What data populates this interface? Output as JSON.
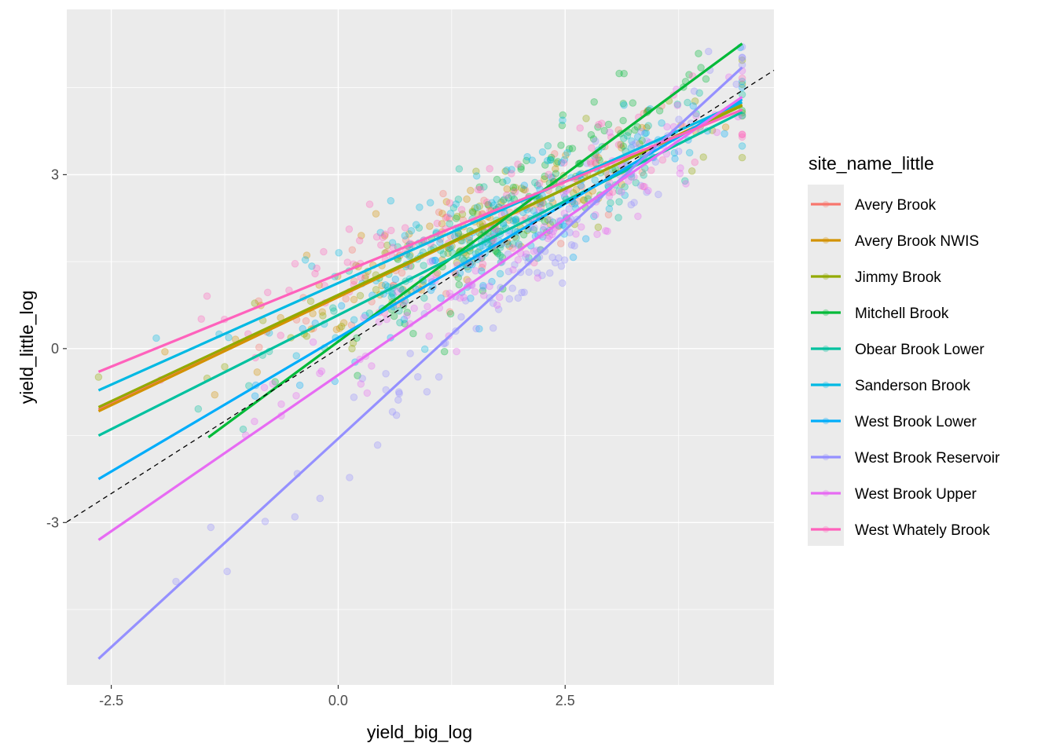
{
  "chart_data": {
    "type": "scatter",
    "title": "",
    "xlabel": "yield_big_log",
    "ylabel": "yield_little_log",
    "xlim": [
      -2.99,
      4.8
    ],
    "ylim": [
      -5.8,
      5.85
    ],
    "x_ticks": [
      -2.5,
      0.0,
      2.5
    ],
    "x_tick_labels": [
      "-2.5",
      "0.0",
      "2.5"
    ],
    "y_ticks": [
      -3,
      0,
      3
    ],
    "y_tick_labels": [
      "-3",
      "0",
      "3"
    ],
    "grid": true,
    "reference_line": {
      "type": "identity",
      "slope": 1,
      "intercept": 0,
      "style": "dashed",
      "color": "#000000"
    },
    "legend": {
      "title": "site_name_little",
      "position": "right"
    },
    "series": [
      {
        "name": "Avery Brook",
        "color": "#F8766D",
        "fit": {
          "x": [
            -2.64,
            4.45
          ],
          "y": [
            -1.05,
            4.2
          ]
        },
        "point_center": [
          1.6,
          2.3
        ],
        "point_spread": [
          1.2,
          0.9
        ],
        "n_points": 60
      },
      {
        "name": "Avery Brook NWIS",
        "color": "#D39200",
        "fit": {
          "x": [
            -2.64,
            4.45
          ],
          "y": [
            -1.08,
            4.21
          ]
        },
        "point_center": [
          1.3,
          2.0
        ],
        "point_spread": [
          1.4,
          1.0
        ],
        "n_points": 90
      },
      {
        "name": "Jimmy Brook",
        "color": "#93AA00",
        "fit": {
          "x": [
            -2.64,
            4.45
          ],
          "y": [
            -1.01,
            4.19
          ]
        },
        "point_center": [
          1.6,
          2.3
        ],
        "point_spread": [
          1.4,
          1.0
        ],
        "n_points": 90
      },
      {
        "name": "Mitchell Brook",
        "color": "#00BA38",
        "fit": {
          "x": [
            -1.43,
            4.45
          ],
          "y": [
            -1.53,
            5.26
          ]
        },
        "point_center": [
          2.2,
          3.0
        ],
        "point_spread": [
          1.0,
          0.9
        ],
        "n_points": 110
      },
      {
        "name": "Obear Brook Lower",
        "color": "#00C19F",
        "fit": {
          "x": [
            -2.64,
            4.45
          ],
          "y": [
            -1.5,
            4.08
          ]
        },
        "point_center": [
          1.9,
          2.5
        ],
        "point_spread": [
          1.3,
          1.0
        ],
        "n_points": 110
      },
      {
        "name": "Sanderson Brook",
        "color": "#00B9E3",
        "fit": {
          "x": [
            -2.64,
            4.45
          ],
          "y": [
            -0.72,
            4.25
          ]
        },
        "point_center": [
          1.7,
          2.5
        ],
        "point_spread": [
          1.3,
          0.9
        ],
        "n_points": 100
      },
      {
        "name": "West Brook Lower",
        "color": "#00ADFA",
        "fit": {
          "x": [
            -2.64,
            4.45
          ],
          "y": [
            -2.25,
            4.3
          ]
        },
        "point_center": [
          1.8,
          2.0
        ],
        "point_spread": [
          1.3,
          1.1
        ],
        "n_points": 100
      },
      {
        "name": "West Brook Reservoir",
        "color": "#9590FF",
        "fit": {
          "x": [
            -2.64,
            4.45
          ],
          "y": [
            -5.35,
            4.85
          ]
        },
        "point_center": [
          2.0,
          1.6
        ],
        "point_spread": [
          1.3,
          1.6
        ],
        "n_points": 110
      },
      {
        "name": "West Brook Upper",
        "color": "#E76BF3",
        "fit": {
          "x": [
            -2.64,
            4.45
          ],
          "y": [
            -3.3,
            4.34
          ]
        },
        "point_center": [
          1.9,
          1.6
        ],
        "point_spread": [
          1.3,
          1.3
        ],
        "n_points": 110
      },
      {
        "name": "West Whately Brook",
        "color": "#FF62BC",
        "fit": {
          "x": [
            -2.64,
            4.45
          ],
          "y": [
            -0.4,
            4.12
          ]
        },
        "point_center": [
          1.4,
          2.4
        ],
        "point_spread": [
          1.5,
          0.9
        ],
        "n_points": 100
      }
    ]
  }
}
